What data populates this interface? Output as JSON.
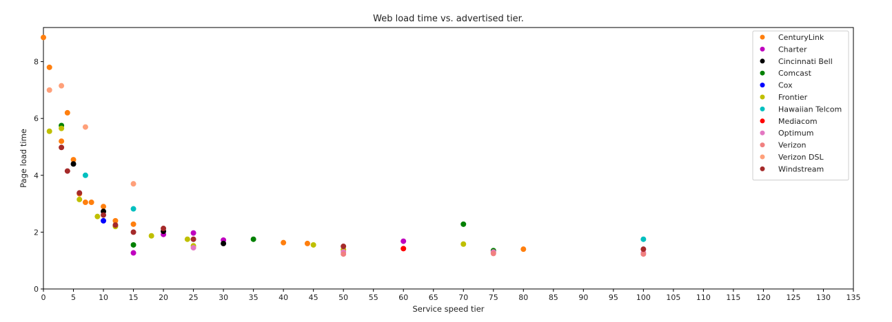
{
  "chart_data": {
    "type": "scatter",
    "title": "Web load time vs. advertised tier.",
    "xlabel": "Service speed tier",
    "ylabel": "Page load time",
    "xlim": [
      0,
      135
    ],
    "ylim": [
      0,
      9.2
    ],
    "xticks": [
      0,
      5,
      10,
      15,
      20,
      25,
      30,
      35,
      40,
      45,
      50,
      55,
      60,
      65,
      70,
      75,
      80,
      85,
      90,
      95,
      100,
      105,
      110,
      115,
      120,
      125,
      130,
      135
    ],
    "yticks": [
      0,
      2,
      4,
      6,
      8
    ],
    "grid": false,
    "legend_position": "top-right",
    "series": [
      {
        "name": "CenturyLink",
        "color": "#ff7f0e",
        "points": [
          [
            0,
            8.85
          ],
          [
            1,
            7.8
          ],
          [
            3,
            5.2
          ],
          [
            4,
            6.2
          ],
          [
            5,
            4.55
          ],
          [
            6,
            3.35
          ],
          [
            7,
            3.05
          ],
          [
            8,
            3.05
          ],
          [
            10,
            2.9
          ],
          [
            12,
            2.4
          ],
          [
            15,
            2.28
          ],
          [
            40,
            1.63
          ],
          [
            44,
            1.6
          ],
          [
            50,
            1.38
          ],
          [
            80,
            1.4
          ]
        ]
      },
      {
        "name": "Charter",
        "color": "#bf00bf",
        "points": [
          [
            15,
            1.27
          ],
          [
            20,
            1.92
          ],
          [
            25,
            1.97
          ],
          [
            30,
            1.72
          ],
          [
            60,
            1.68
          ]
        ]
      },
      {
        "name": "Cincinnati Bell",
        "color": "#000000",
        "points": [
          [
            5,
            4.4
          ],
          [
            10,
            2.73
          ],
          [
            20,
            2.03
          ],
          [
            30,
            1.6
          ]
        ]
      },
      {
        "name": "Comcast",
        "color": "#008000",
        "points": [
          [
            3,
            5.75
          ],
          [
            15,
            1.55
          ],
          [
            35,
            1.75
          ],
          [
            70,
            2.28
          ],
          [
            75,
            1.35
          ]
        ]
      },
      {
        "name": "Cox",
        "color": "#0000ff",
        "points": [
          [
            10,
            2.4
          ]
        ]
      },
      {
        "name": "Frontier",
        "color": "#bfbf00",
        "points": [
          [
            1,
            5.55
          ],
          [
            3,
            5.65
          ],
          [
            6,
            3.15
          ],
          [
            9,
            2.55
          ],
          [
            12,
            2.2
          ],
          [
            18,
            1.87
          ],
          [
            24,
            1.75
          ],
          [
            25,
            1.52
          ],
          [
            45,
            1.55
          ],
          [
            50,
            1.38
          ],
          [
            70,
            1.58
          ]
        ]
      },
      {
        "name": "Hawaiian Telcom",
        "color": "#00bfbf",
        "points": [
          [
            7,
            4.0
          ],
          [
            15,
            2.82
          ],
          [
            100,
            1.75
          ]
        ]
      },
      {
        "name": "Mediacom",
        "color": "#ff0000",
        "points": [
          [
            60,
            1.42
          ]
        ]
      },
      {
        "name": "Optimum",
        "color": "#e377c2",
        "points": [
          [
            25,
            1.45
          ],
          [
            50,
            1.3
          ],
          [
            75,
            1.3
          ],
          [
            100,
            1.27
          ]
        ]
      },
      {
        "name": "Verizon",
        "color": "#f08080",
        "points": [
          [
            50,
            1.23
          ],
          [
            75,
            1.25
          ],
          [
            100,
            1.23
          ]
        ]
      },
      {
        "name": "Verizon DSL",
        "color": "#ffa07a",
        "points": [
          [
            1,
            7.0
          ],
          [
            3,
            7.15
          ],
          [
            7,
            5.7
          ],
          [
            15,
            3.7
          ]
        ]
      },
      {
        "name": "Windstream",
        "color": "#a52a2a",
        "points": [
          [
            3,
            4.98
          ],
          [
            4,
            4.15
          ],
          [
            6,
            3.38
          ],
          [
            10,
            2.6
          ],
          [
            12,
            2.25
          ],
          [
            15,
            2.0
          ],
          [
            20,
            2.13
          ],
          [
            25,
            1.75
          ],
          [
            50,
            1.5
          ],
          [
            100,
            1.4
          ]
        ]
      }
    ]
  }
}
